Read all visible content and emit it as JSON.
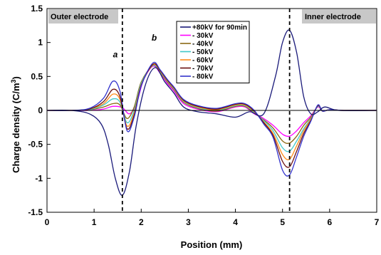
{
  "chart_data": {
    "type": "line",
    "xlabel": "Position (mm)",
    "ylabel_main": "Charge density (C/m",
    "ylabel_sup": "3",
    "ylabel_close": ")",
    "xlim": [
      0,
      7
    ],
    "ylim": [
      -1.5,
      1.5
    ],
    "x_ticks": [
      0,
      1,
      2,
      3,
      4,
      5,
      6,
      7
    ],
    "x_tick_labels": [
      "0",
      "1",
      "2",
      "3",
      "4",
      "5",
      "6",
      "7"
    ],
    "y_ticks": [
      -1.5,
      -1,
      -0.5,
      0,
      0.5,
      1,
      1.5
    ],
    "y_tick_labels": [
      "-1.5",
      "-1",
      "-0.5",
      "0",
      "0.5",
      "1",
      "1.5"
    ],
    "grid": false,
    "legend_position": "top-center",
    "annotations": {
      "outer_electrode": "Outer electrode",
      "inner_electrode": "Inner electrode",
      "peak_a": "a",
      "peak_b": "b"
    },
    "annotation_positions": {
      "peak_a": {
        "x": 1.4,
        "y": 0.78
      },
      "peak_b": {
        "x": 2.22,
        "y": 1.03
      }
    },
    "dashed_lines_x": [
      1.6,
      5.15
    ],
    "series": [
      {
        "name": "+80kV for 90min",
        "color": "#1a1a7a",
        "x": [
          0,
          0.5,
          0.9,
          1.15,
          1.3,
          1.45,
          1.6,
          1.75,
          1.9,
          2.1,
          2.3,
          2.5,
          2.7,
          2.9,
          3.2,
          3.6,
          4.0,
          4.3,
          4.6,
          4.85,
          5.0,
          5.15,
          5.3,
          5.45,
          5.6,
          5.75,
          5.9,
          6.2,
          7.0
        ],
        "y": [
          0,
          0,
          -0.05,
          -0.2,
          -0.5,
          -1.0,
          -1.25,
          -0.9,
          -0.2,
          0.4,
          0.63,
          0.42,
          0.25,
          0.05,
          -0.02,
          -0.05,
          -0.1,
          -0.02,
          -0.05,
          0.5,
          1.0,
          1.18,
          0.85,
          0.2,
          -0.05,
          -0.02,
          0.05,
          0,
          0
        ]
      },
      {
        "name": "- 30kV",
        "color": "#ff00ff",
        "x": [
          0,
          0.5,
          0.9,
          1.2,
          1.4,
          1.6,
          1.75,
          1.9,
          2.05,
          2.25,
          2.4,
          2.55,
          2.7,
          2.9,
          3.2,
          3.6,
          4.0,
          4.2,
          4.4,
          4.6,
          4.8,
          5.0,
          5.15,
          5.3,
          5.45,
          5.6,
          5.75,
          5.85,
          6.0,
          6.3,
          7.0
        ],
        "y": [
          0,
          0,
          0,
          0.02,
          0.06,
          0.04,
          -0.05,
          0.1,
          0.45,
          0.65,
          0.55,
          0.4,
          0.28,
          0.1,
          0.02,
          -0.02,
          0.05,
          0.05,
          -0.05,
          -0.12,
          -0.22,
          -0.35,
          -0.38,
          -0.3,
          -0.18,
          -0.08,
          0.05,
          -0.01,
          0.01,
          0,
          0
        ]
      },
      {
        "name": "- 40kV",
        "color": "#8b6914",
        "x": [
          0,
          0.5,
          0.9,
          1.2,
          1.4,
          1.55,
          1.7,
          1.85,
          2.0,
          2.25,
          2.4,
          2.55,
          2.7,
          2.9,
          3.2,
          3.6,
          4.0,
          4.2,
          4.4,
          4.6,
          4.8,
          5.0,
          5.15,
          5.3,
          5.45,
          5.6,
          5.75,
          5.85,
          6.0,
          6.3,
          7.0
        ],
        "y": [
          0,
          0,
          0.01,
          0.05,
          0.1,
          0.08,
          -0.12,
          0.05,
          0.42,
          0.66,
          0.56,
          0.42,
          0.3,
          0.12,
          0.03,
          -0.01,
          0.06,
          0.06,
          -0.04,
          -0.14,
          -0.26,
          -0.45,
          -0.48,
          -0.38,
          -0.22,
          -0.1,
          0.06,
          -0.01,
          0.01,
          0,
          0
        ]
      },
      {
        "name": "- 50kV",
        "color": "#40c8c8",
        "x": [
          0,
          0.5,
          0.9,
          1.2,
          1.4,
          1.55,
          1.7,
          1.85,
          2.0,
          2.25,
          2.4,
          2.55,
          2.7,
          2.9,
          3.2,
          3.6,
          4.0,
          4.2,
          4.4,
          4.6,
          4.8,
          5.0,
          5.15,
          5.3,
          5.45,
          5.6,
          5.75,
          5.85,
          6.0,
          6.3,
          7.0
        ],
        "y": [
          0,
          0,
          0.01,
          0.08,
          0.17,
          0.12,
          -0.18,
          0.0,
          0.4,
          0.66,
          0.57,
          0.43,
          0.31,
          0.13,
          0.04,
          0.0,
          0.07,
          0.07,
          -0.03,
          -0.15,
          -0.3,
          -0.55,
          -0.6,
          -0.45,
          -0.27,
          -0.12,
          0.06,
          -0.01,
          0.01,
          0,
          0
        ]
      },
      {
        "name": "- 60kV",
        "color": "#ff8c1a",
        "x": [
          0,
          0.5,
          0.9,
          1.2,
          1.4,
          1.55,
          1.7,
          1.85,
          2.0,
          2.25,
          2.4,
          2.55,
          2.7,
          2.9,
          3.2,
          3.6,
          4.0,
          4.2,
          4.4,
          4.6,
          4.8,
          5.0,
          5.15,
          5.3,
          5.45,
          5.6,
          5.75,
          5.85,
          6.0,
          6.3,
          7.0
        ],
        "y": [
          0,
          0,
          0.02,
          0.1,
          0.24,
          0.16,
          -0.23,
          -0.04,
          0.38,
          0.67,
          0.58,
          0.44,
          0.32,
          0.14,
          0.05,
          0.01,
          0.08,
          0.08,
          -0.02,
          -0.17,
          -0.34,
          -0.65,
          -0.72,
          -0.52,
          -0.3,
          -0.13,
          0.07,
          -0.01,
          0.01,
          0,
          0
        ]
      },
      {
        "name": "- 70kV",
        "color": "#6b0f0f",
        "x": [
          0,
          0.5,
          0.9,
          1.2,
          1.4,
          1.55,
          1.7,
          1.85,
          2.0,
          2.25,
          2.4,
          2.55,
          2.7,
          2.9,
          3.2,
          3.6,
          4.0,
          4.2,
          4.4,
          4.6,
          4.8,
          5.0,
          5.15,
          5.3,
          5.45,
          5.6,
          5.75,
          5.85,
          6.0,
          6.3,
          7.0
        ],
        "y": [
          0,
          0,
          0.02,
          0.13,
          0.31,
          0.2,
          -0.27,
          -0.07,
          0.37,
          0.68,
          0.59,
          0.45,
          0.33,
          0.15,
          0.06,
          0.02,
          0.09,
          0.09,
          -0.01,
          -0.18,
          -0.37,
          -0.75,
          -0.83,
          -0.6,
          -0.34,
          -0.15,
          0.07,
          -0.01,
          0.01,
          0,
          0
        ]
      },
      {
        "name": "- 80kV",
        "color": "#3333cc",
        "x": [
          0,
          0.5,
          0.9,
          1.2,
          1.4,
          1.55,
          1.7,
          1.85,
          2.0,
          2.25,
          2.4,
          2.55,
          2.7,
          2.9,
          3.2,
          3.6,
          4.0,
          4.2,
          4.4,
          4.6,
          4.8,
          5.0,
          5.15,
          5.3,
          5.45,
          5.6,
          5.75,
          5.85,
          6.0,
          6.3,
          7.0
        ],
        "y": [
          0,
          0,
          0.03,
          0.18,
          0.43,
          0.28,
          -0.3,
          -0.1,
          0.36,
          0.7,
          0.6,
          0.46,
          0.34,
          0.16,
          0.07,
          0.03,
          0.1,
          0.1,
          0.0,
          -0.2,
          -0.4,
          -0.88,
          -0.95,
          -0.68,
          -0.38,
          -0.16,
          0.08,
          -0.01,
          0.01,
          0,
          0
        ]
      }
    ]
  }
}
